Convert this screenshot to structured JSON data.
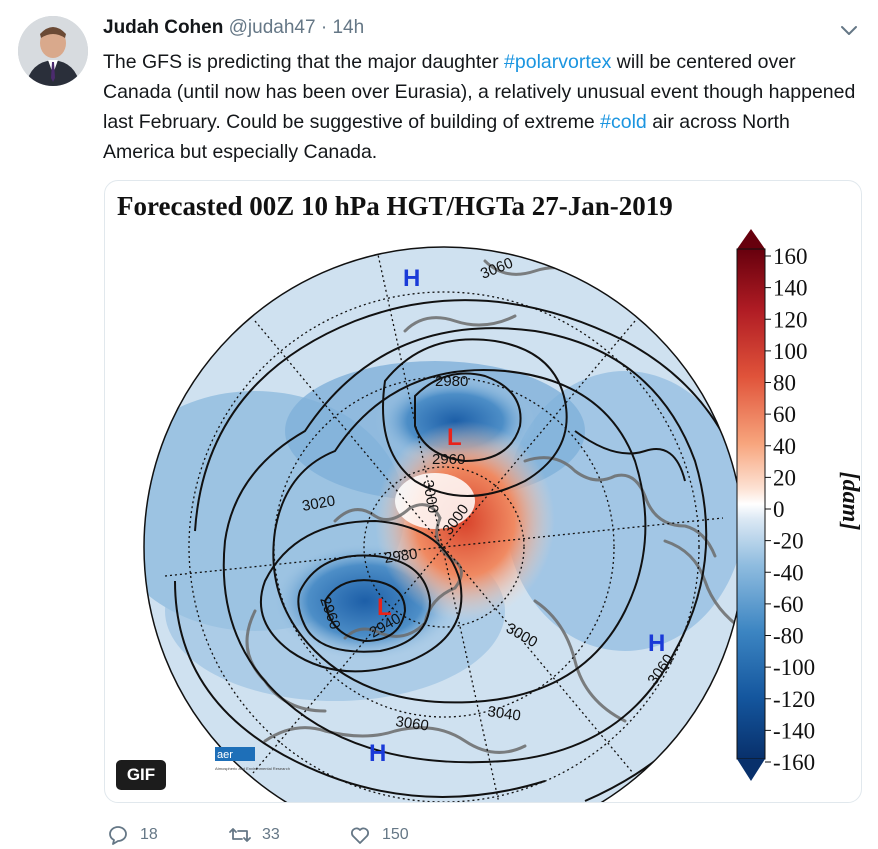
{
  "tweet": {
    "author_name": "Judah Cohen",
    "handle": "@judah47",
    "separator": "·",
    "time": "14h",
    "text_parts": {
      "t1": "The GFS is predicting that the major daughter ",
      "h1": "#polarvortex",
      "t2": " will be centered over Canada (until now has been over Eurasia), a relatively unusual event though happened last February.  Could be suggestive of building of extreme ",
      "h2": "#cold",
      "t3": " air across North America but especially Canada."
    }
  },
  "media": {
    "title": "Forecasted 00Z 10 hPa HGT/HGTa 27-Jan-2019",
    "colorbar_unit": "[dam]",
    "colorbar_ticks": [
      "160",
      "140",
      "120",
      "100",
      "80",
      "60",
      "40",
      "20",
      "0",
      "-20",
      "-40",
      "-60",
      "-80",
      "-100",
      "-120",
      "-140",
      "-160"
    ],
    "contour_labels": [
      "3060",
      "2980",
      "2960",
      "3000",
      "3020",
      "2980",
      "3000",
      "2960",
      "2940",
      "3000",
      "3060",
      "3040",
      "3060"
    ],
    "markers": {
      "low": "L",
      "high": "H"
    },
    "logo_text": "aer",
    "logo_subtext": "Atmospheric and Environmental Research",
    "badge": "GIF"
  },
  "actions": {
    "reply_count": "18",
    "retweet_count": "33",
    "like_count": "150"
  },
  "colors": {
    "link": "#1b95e0",
    "secondary": "#657786"
  }
}
